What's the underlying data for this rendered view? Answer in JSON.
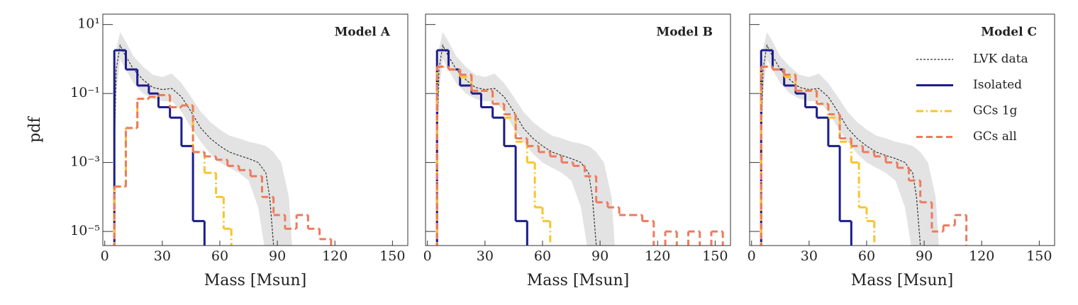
{
  "chart_data": [
    {
      "type": "histogram",
      "title": "Model A",
      "xlabel": "Mass [Msun]",
      "ylabel": "pdf",
      "yscale": "log",
      "xlim": [
        -1,
        158
      ],
      "ylim": [
        3.9e-06,
        20
      ],
      "xticks": [
        0,
        30,
        60,
        90,
        120,
        150
      ],
      "yticks": [
        {
          "value": 10,
          "label": "10¹"
        },
        {
          "value": 0.1,
          "label": "10⁻¹"
        },
        {
          "value": 0.001,
          "label": "10⁻³"
        },
        {
          "value": 1e-05,
          "label": "10⁻⁵"
        }
      ],
      "show_ytick_labels": true,
      "series": [
        {
          "name": "LVK data",
          "kind": "line",
          "color": "#333333",
          "band_color": "#e3e3e3",
          "linestyle": "dotted",
          "x": [
            5,
            6,
            8,
            10,
            15,
            20,
            25,
            30,
            35,
            40,
            45,
            50,
            55,
            60,
            65,
            70,
            75,
            80,
            84,
            86,
            88,
            92,
            96,
            98
          ],
          "values": [
            0.003,
            0.5,
            2.5,
            1.5,
            0.5,
            0.25,
            0.15,
            0.13,
            0.14,
            0.08,
            0.03,
            0.01,
            0.005,
            0.003,
            0.002,
            0.0016,
            0.0013,
            0.001,
            0.0005,
            0.0001,
            4e-06,
            null,
            null,
            null
          ],
          "upper": [
            0.02,
            2,
            6,
            4,
            1.2,
            0.6,
            0.35,
            0.3,
            0.38,
            0.2,
            0.08,
            0.03,
            0.015,
            0.009,
            0.006,
            0.005,
            0.004,
            0.0035,
            0.003,
            0.0025,
            0.002,
            0.001,
            0.0001,
            2e-06
          ],
          "lower": [
            0.0005,
            0.1,
            1,
            0.6,
            0.2,
            0.1,
            0.07,
            0.06,
            0.06,
            0.03,
            0.01,
            0.004,
            0.0018,
            0.001,
            0.0007,
            0.0005,
            0.0003,
            5e-05,
            2e-06,
            1e-06,
            1e-06,
            1e-06,
            1e-06,
            1e-06
          ]
        },
        {
          "name": "Isolated",
          "kind": "step",
          "color": "#1c1c8c",
          "linestyle": "solid",
          "bins": [
            5,
            11,
            17,
            23,
            28,
            34,
            40,
            46,
            52
          ],
          "values": [
            1.8,
            0.5,
            0.17,
            0.1,
            0.04,
            0.02,
            0.003,
            2e-05
          ]
        },
        {
          "name": "GCs 1g",
          "kind": "step",
          "color": "#f7c52a",
          "linestyle": "dashdot",
          "bins": [
            5,
            11,
            17,
            23,
            28,
            34,
            40,
            46,
            52,
            58,
            62,
            66
          ],
          "values": [
            0.0002,
            0.01,
            0.07,
            0.08,
            0.09,
            0.04,
            0.045,
            0.002,
            0.0005,
            0.0001,
            1.2e-05
          ]
        },
        {
          "name": "GCs all",
          "kind": "step",
          "color": "#ee7a5e",
          "linestyle": "dashed",
          "bins": [
            5,
            11,
            17,
            23,
            28,
            34,
            40,
            46,
            52,
            58,
            64,
            70,
            76,
            82,
            88,
            94,
            100,
            106,
            112,
            118
          ],
          "values": [
            0.0002,
            0.01,
            0.07,
            0.08,
            0.09,
            0.04,
            0.045,
            0.002,
            0.0015,
            0.0012,
            0.0008,
            0.0006,
            0.0004,
            0.0001,
            3e-05,
            1.2e-05,
            3e-05,
            1.2e-05,
            6e-06
          ]
        }
      ]
    },
    {
      "type": "histogram",
      "title": "Model B",
      "xlabel": "Mass [Msun]",
      "yscale": "log",
      "xlim": [
        -1,
        158
      ],
      "ylim": [
        3.9e-06,
        20
      ],
      "xticks": [
        0,
        30,
        60,
        90,
        120,
        150
      ],
      "yticks": [
        10,
        0.1,
        0.001,
        1e-05
      ],
      "show_ytick_labels": false,
      "series": [
        {
          "name": "LVK data",
          "kind": "line",
          "color": "#333333",
          "band_color": "#e3e3e3",
          "linestyle": "dotted",
          "x": [
            5,
            6,
            8,
            10,
            15,
            20,
            25,
            30,
            35,
            40,
            45,
            50,
            55,
            60,
            65,
            70,
            75,
            80,
            84,
            86,
            88,
            92,
            96,
            98
          ],
          "values": [
            0.003,
            0.5,
            2.5,
            1.5,
            0.5,
            0.25,
            0.15,
            0.13,
            0.14,
            0.08,
            0.03,
            0.01,
            0.005,
            0.003,
            0.002,
            0.0016,
            0.0013,
            0.001,
            0.0005,
            0.0001,
            4e-06,
            null,
            null,
            null
          ],
          "upper": [
            0.02,
            2,
            6,
            4,
            1.2,
            0.6,
            0.35,
            0.3,
            0.38,
            0.2,
            0.08,
            0.03,
            0.015,
            0.009,
            0.006,
            0.005,
            0.004,
            0.0035,
            0.003,
            0.0025,
            0.002,
            0.001,
            0.0001,
            2e-06
          ],
          "lower": [
            0.0005,
            0.1,
            1,
            0.6,
            0.2,
            0.1,
            0.07,
            0.06,
            0.06,
            0.03,
            0.01,
            0.004,
            0.0018,
            0.001,
            0.0007,
            0.0005,
            0.0003,
            5e-05,
            2e-06,
            1e-06,
            1e-06,
            1e-06,
            1e-06,
            1e-06
          ]
        },
        {
          "name": "Isolated",
          "kind": "step",
          "color": "#1c1c8c",
          "linestyle": "solid",
          "bins": [
            5,
            11,
            17,
            23,
            28,
            34,
            40,
            46,
            52
          ],
          "values": [
            1.8,
            0.5,
            0.17,
            0.1,
            0.04,
            0.02,
            0.003,
            2e-05
          ]
        },
        {
          "name": "GCs 1g",
          "kind": "step",
          "color": "#f7c52a",
          "linestyle": "dashdot",
          "bins": [
            5,
            11,
            17,
            23,
            28,
            34,
            40,
            46,
            52,
            56,
            60,
            64
          ],
          "values": [
            0.6,
            0.5,
            0.3,
            0.12,
            0.12,
            0.05,
            0.02,
            0.004,
            0.001,
            5e-05,
            2e-05
          ]
        },
        {
          "name": "GCs all",
          "kind": "step",
          "color": "#ee7a5e",
          "linestyle": "dashed",
          "bins": [
            5,
            11,
            17,
            23,
            28,
            34,
            40,
            46,
            52,
            58,
            64,
            70,
            76,
            82,
            88,
            94,
            100,
            106,
            112,
            118,
            124,
            130,
            136,
            142,
            148,
            154
          ],
          "values": [
            0.6,
            0.5,
            0.35,
            0.12,
            0.12,
            0.05,
            0.025,
            0.005,
            0.003,
            0.002,
            0.0015,
            0.001,
            0.0008,
            0.0004,
            7e-05,
            5e-05,
            3e-05,
            3e-05,
            2e-05,
            1e-06,
            1e-05,
            1e-06,
            1e-05,
            1e-06,
            1e-05
          ]
        }
      ]
    },
    {
      "type": "histogram",
      "title": "Model C",
      "xlabel": "Mass [Msun]",
      "yscale": "log",
      "legend": "upper right",
      "xlim": [
        -1,
        158
      ],
      "ylim": [
        3.9e-06,
        20
      ],
      "xticks": [
        0,
        30,
        60,
        90,
        120,
        150
      ],
      "yticks": [
        10,
        0.1,
        0.001,
        1e-05
      ],
      "show_ytick_labels": false,
      "series": [
        {
          "name": "LVK data",
          "kind": "line",
          "color": "#333333",
          "band_color": "#e3e3e3",
          "linestyle": "dotted",
          "x": [
            5,
            6,
            8,
            10,
            15,
            20,
            25,
            30,
            35,
            40,
            45,
            50,
            55,
            60,
            65,
            70,
            75,
            80,
            84,
            86,
            88,
            92,
            96,
            98
          ],
          "values": [
            0.003,
            0.5,
            2.5,
            1.5,
            0.5,
            0.25,
            0.15,
            0.13,
            0.14,
            0.08,
            0.03,
            0.01,
            0.005,
            0.003,
            0.002,
            0.0016,
            0.0013,
            0.001,
            0.0005,
            0.0001,
            4e-06,
            null,
            null,
            null
          ],
          "upper": [
            0.02,
            2,
            6,
            4,
            1.2,
            0.6,
            0.35,
            0.3,
            0.38,
            0.2,
            0.08,
            0.03,
            0.015,
            0.009,
            0.006,
            0.005,
            0.004,
            0.0035,
            0.003,
            0.0025,
            0.002,
            0.001,
            0.0001,
            2e-06
          ],
          "lower": [
            0.0005,
            0.1,
            1,
            0.6,
            0.2,
            0.1,
            0.07,
            0.06,
            0.06,
            0.03,
            0.01,
            0.004,
            0.0018,
            0.001,
            0.0007,
            0.0005,
            0.0003,
            5e-05,
            2e-06,
            1e-06,
            1e-06,
            1e-06,
            1e-06,
            1e-06
          ]
        },
        {
          "name": "Isolated",
          "kind": "step",
          "color": "#1c1c8c",
          "linestyle": "solid",
          "bins": [
            5,
            11,
            17,
            23,
            28,
            34,
            40,
            46,
            52
          ],
          "values": [
            1.8,
            0.5,
            0.17,
            0.1,
            0.04,
            0.02,
            0.003,
            2e-05
          ]
        },
        {
          "name": "GCs 1g",
          "kind": "step",
          "color": "#f7c52a",
          "linestyle": "dashdot",
          "bins": [
            5,
            11,
            17,
            23,
            28,
            34,
            40,
            46,
            52,
            56,
            60,
            64
          ],
          "values": [
            0.6,
            0.5,
            0.3,
            0.12,
            0.12,
            0.05,
            0.02,
            0.004,
            0.001,
            5e-05,
            2e-05
          ]
        },
        {
          "name": "GCs all",
          "kind": "step",
          "color": "#ee7a5e",
          "linestyle": "dashed",
          "bins": [
            5,
            11,
            17,
            23,
            28,
            34,
            40,
            46,
            52,
            58,
            64,
            70,
            76,
            82,
            88,
            94,
            100,
            106,
            112
          ],
          "values": [
            0.6,
            0.5,
            0.35,
            0.12,
            0.12,
            0.05,
            0.025,
            0.005,
            0.003,
            0.002,
            0.0015,
            0.001,
            0.0007,
            0.0003,
            7e-05,
            1e-05,
            1.5e-05,
            3e-05
          ]
        }
      ]
    }
  ]
}
